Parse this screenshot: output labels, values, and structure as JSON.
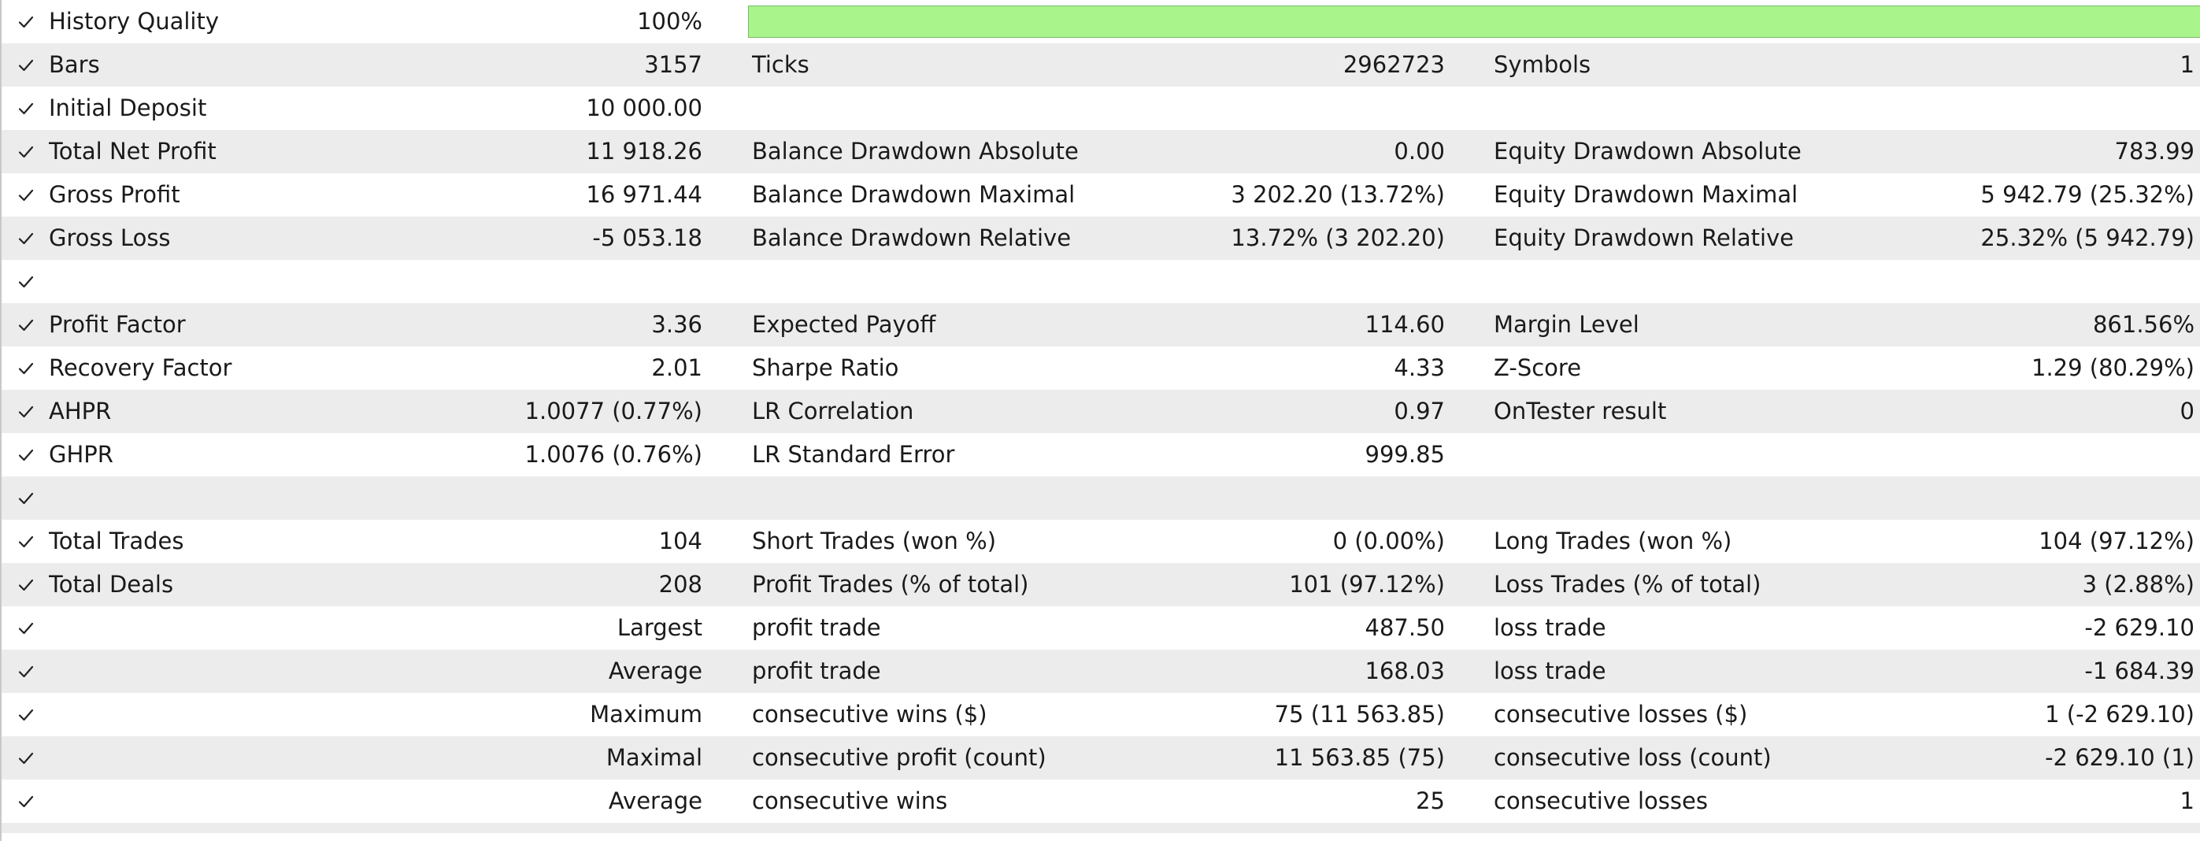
{
  "colors": {
    "row_shade": "#ececec",
    "bar_fill": "#a9f58c",
    "bar_border": "#7ab86a"
  },
  "icons": {
    "row_check": "check-icon"
  },
  "history_quality": {
    "label": "History Quality",
    "value": "100%",
    "fraction": 1.0
  },
  "rows": [
    {
      "name": "bars",
      "col1_label": "Bars",
      "col1_value": "3157",
      "col2_label": "Ticks",
      "col2_value": "2962723",
      "col3_label": "Symbols",
      "col3_value": "1"
    },
    {
      "name": "initial-deposit",
      "col1_label": "Initial Deposit",
      "col1_value": "10 000.00",
      "col2_label": "",
      "col2_value": "",
      "col3_label": "",
      "col3_value": ""
    },
    {
      "name": "total-net-profit",
      "col1_label": "Total Net Profit",
      "col1_value": "11 918.26",
      "col2_label": "Balance Drawdown Absolute",
      "col2_value": "0.00",
      "col3_label": "Equity Drawdown Absolute",
      "col3_value": "783.99"
    },
    {
      "name": "gross-profit",
      "col1_label": "Gross Profit",
      "col1_value": "16 971.44",
      "col2_label": "Balance Drawdown Maximal",
      "col2_value": "3 202.20 (13.72%)",
      "col3_label": "Equity Drawdown Maximal",
      "col3_value": "5 942.79 (25.32%)"
    },
    {
      "name": "gross-loss",
      "col1_label": "Gross Loss",
      "col1_value": "-5 053.18",
      "col2_label": "Balance Drawdown Relative",
      "col2_value": "13.72% (3 202.20)",
      "col3_label": "Equity Drawdown Relative",
      "col3_value": "25.32% (5 942.79)"
    },
    {
      "name": "spacer-1",
      "col1_label": "",
      "col1_value": "",
      "col2_label": "",
      "col2_value": "",
      "col3_label": "",
      "col3_value": ""
    },
    {
      "name": "profit-factor",
      "col1_label": "Profit Factor",
      "col1_value": "3.36",
      "col2_label": "Expected Payoff",
      "col2_value": "114.60",
      "col3_label": "Margin Level",
      "col3_value": "861.56%"
    },
    {
      "name": "recovery-factor",
      "col1_label": "Recovery Factor",
      "col1_value": "2.01",
      "col2_label": "Sharpe Ratio",
      "col2_value": "4.33",
      "col3_label": "Z-Score",
      "col3_value": "1.29 (80.29%)"
    },
    {
      "name": "ahpr",
      "col1_label": "AHPR",
      "col1_value": "1.0077 (0.77%)",
      "col2_label": "LR Correlation",
      "col2_value": "0.97",
      "col3_label": "OnTester result",
      "col3_value": "0"
    },
    {
      "name": "ghpr",
      "col1_label": "GHPR",
      "col1_value": "1.0076 (0.76%)",
      "col2_label": "LR Standard Error",
      "col2_value": "999.85",
      "col3_label": "",
      "col3_value": ""
    },
    {
      "name": "spacer-2",
      "col1_label": "",
      "col1_value": "",
      "col2_label": "",
      "col2_value": "",
      "col3_label": "",
      "col3_value": ""
    },
    {
      "name": "total-trades",
      "col1_label": "Total Trades",
      "col1_value": "104",
      "col2_label": "Short Trades (won %)",
      "col2_value": "0 (0.00%)",
      "col3_label": "Long Trades (won %)",
      "col3_value": "104 (97.12%)"
    },
    {
      "name": "total-deals",
      "col1_label": "Total Deals",
      "col1_value": "208",
      "col2_label": "Profit Trades (% of total)",
      "col2_value": "101 (97.12%)",
      "col3_label": "Loss Trades (% of total)",
      "col3_value": "3 (2.88%)"
    },
    {
      "name": "largest",
      "col1_label": "",
      "col1_value": "Largest",
      "col2_label": "profit trade",
      "col2_value": "487.50",
      "col3_label": "loss trade",
      "col3_value": "-2 629.10"
    },
    {
      "name": "average",
      "col1_label": "",
      "col1_value": "Average",
      "col2_label": "profit trade",
      "col2_value": "168.03",
      "col3_label": "loss trade",
      "col3_value": "-1 684.39"
    },
    {
      "name": "maximum",
      "col1_label": "",
      "col1_value": "Maximum",
      "col2_label": "consecutive wins ($)",
      "col2_value": "75 (11 563.85)",
      "col3_label": "consecutive losses ($)",
      "col3_value": "1 (-2 629.10)"
    },
    {
      "name": "maximal",
      "col1_label": "",
      "col1_value": "Maximal",
      "col2_label": "consecutive profit (count)",
      "col2_value": "11 563.85 (75)",
      "col3_label": "consecutive loss (count)",
      "col3_value": "-2 629.10 (1)"
    },
    {
      "name": "average-consecutive",
      "col1_label": "",
      "col1_value": "Average",
      "col2_label": "consecutive wins",
      "col2_value": "25",
      "col3_label": "consecutive losses",
      "col3_value": "1"
    }
  ]
}
